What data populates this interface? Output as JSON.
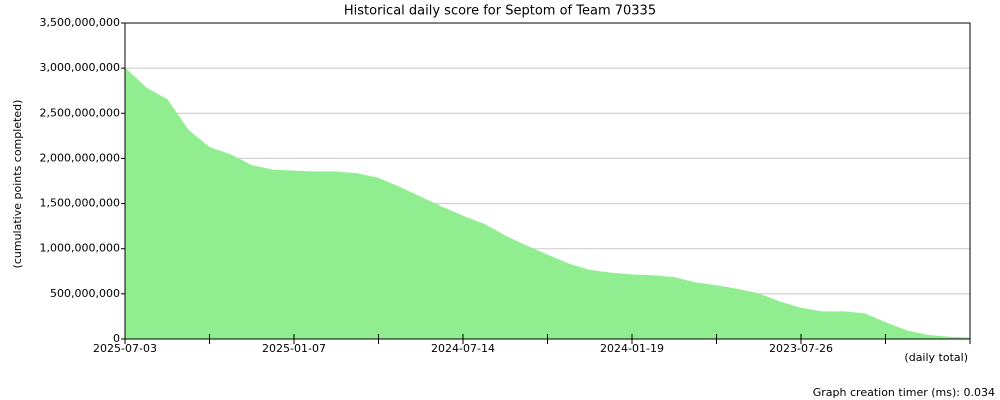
{
  "chart_data": {
    "type": "area",
    "title": "Historical daily score for Septom of Team 70335",
    "y_label": "(cumulative points completed)",
    "x_label": "(daily total)",
    "footer": "Graph creation timer (ms): 0.034",
    "color": "#90ee90",
    "grid": true,
    "categories": [
      "2025-07-03",
      null,
      null,
      null,
      null,
      null,
      null,
      null,
      "2025-01-07",
      null,
      null,
      null,
      null,
      null,
      null,
      null,
      "2024-07-14",
      null,
      null,
      null,
      null,
      null,
      null,
      null,
      "2024-01-19",
      null,
      null,
      null,
      null,
      null,
      null,
      null,
      "2023-07-26",
      null,
      null,
      null,
      null,
      null,
      null,
      null,
      null
    ],
    "values": [
      3000000000,
      2780000000,
      2650000000,
      2310000000,
      2120000000,
      2040000000,
      1920000000,
      1870000000,
      1860000000,
      1850000000,
      1850000000,
      1830000000,
      1780000000,
      1680000000,
      1570000000,
      1460000000,
      1360000000,
      1270000000,
      1140000000,
      1030000000,
      930000000,
      830000000,
      760000000,
      730000000,
      710000000,
      700000000,
      680000000,
      620000000,
      590000000,
      550000000,
      500000000,
      410000000,
      340000000,
      300000000,
      300000000,
      280000000,
      180000000,
      90000000,
      40000000,
      20000000,
      10000000
    ],
    "ylim": [
      0,
      3500000000
    ],
    "yticks": [
      {
        "value": 0,
        "label": "0"
      },
      {
        "value": 500000000,
        "label": "500,000,000"
      },
      {
        "value": 1000000000,
        "label": "1,000,000,000"
      },
      {
        "value": 1500000000,
        "label": "1,500,000,000"
      },
      {
        "value": 2000000000,
        "label": "2,000,000,000"
      },
      {
        "value": 2500000000,
        "label": "2,500,000,000"
      },
      {
        "value": 3000000000,
        "label": "3,000,000,000"
      },
      {
        "value": 3500000000,
        "label": "3,500,000,000"
      }
    ]
  }
}
